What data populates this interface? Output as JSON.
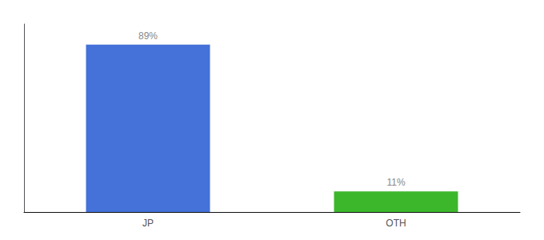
{
  "chart_data": {
    "type": "bar",
    "categories": [
      "JP",
      "OTH"
    ],
    "values": [
      89,
      11
    ],
    "value_labels": [
      "89%",
      "11%"
    ],
    "colors": [
      "#4472D9",
      "#3CB72C"
    ],
    "ylim": [
      0,
      100
    ],
    "data_labels": true,
    "tick_labels": "x",
    "grid": false
  }
}
